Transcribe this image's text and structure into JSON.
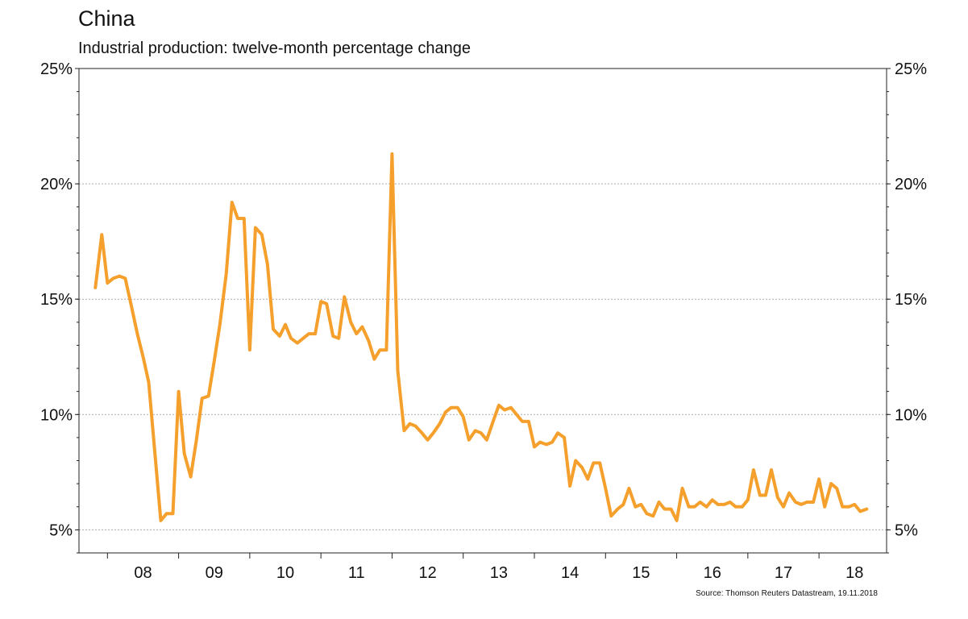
{
  "header": {
    "title": "China",
    "subtitle": "Industrial production: twelve-month percentage change"
  },
  "footer": {
    "source": "Source: Thomson Reuters Datastream, 19.11.2018"
  },
  "chart_data": {
    "type": "line",
    "title": "China",
    "subtitle": "Industrial production: twelve-month percentage change",
    "xlabel": "",
    "ylabel": "",
    "xlim": [
      2007.6,
      2018.95
    ],
    "ylim": [
      4,
      25
    ],
    "y_ticks": [
      5,
      10,
      15,
      20,
      25
    ],
    "y_tick_labels": [
      "5%",
      "10%",
      "15%",
      "20%",
      "25%"
    ],
    "x_ticks": [
      2008.5,
      2009.5,
      2010.5,
      2011.5,
      2012.5,
      2013.5,
      2014.5,
      2015.5,
      2016.5,
      2017.5,
      2018.5
    ],
    "x_tick_labels": [
      "08",
      "09",
      "10",
      "11",
      "12",
      "13",
      "14",
      "15",
      "16",
      "17",
      "18"
    ],
    "grid": true,
    "dual_y_axis": true,
    "legend": "none",
    "colors": {
      "line": "#F5A02C",
      "grid": "#aaaaaa",
      "axis": "#222222"
    },
    "series": [
      {
        "name": "",
        "points": [
          [
            2007.83,
            15.5
          ],
          [
            2007.92,
            17.8
          ],
          [
            2008.0,
            15.7
          ],
          [
            2008.08,
            15.9
          ],
          [
            2008.17,
            16.0
          ],
          [
            2008.25,
            15.9
          ],
          [
            2008.33,
            14.8
          ],
          [
            2008.42,
            13.5
          ],
          [
            2008.5,
            12.5
          ],
          [
            2008.58,
            11.4
          ],
          [
            2008.67,
            8.2
          ],
          [
            2008.75,
            5.4
          ],
          [
            2008.83,
            5.7
          ],
          [
            2008.92,
            5.7
          ],
          [
            2009.0,
            11.0
          ],
          [
            2009.08,
            8.3
          ],
          [
            2009.17,
            7.3
          ],
          [
            2009.25,
            8.9
          ],
          [
            2009.33,
            10.7
          ],
          [
            2009.42,
            10.8
          ],
          [
            2009.5,
            12.3
          ],
          [
            2009.58,
            13.9
          ],
          [
            2009.67,
            16.1
          ],
          [
            2009.75,
            19.2
          ],
          [
            2009.83,
            18.5
          ],
          [
            2009.92,
            18.5
          ],
          [
            2010.0,
            12.8
          ],
          [
            2010.08,
            18.1
          ],
          [
            2010.17,
            17.8
          ],
          [
            2010.25,
            16.5
          ],
          [
            2010.33,
            13.7
          ],
          [
            2010.42,
            13.4
          ],
          [
            2010.5,
            13.9
          ],
          [
            2010.58,
            13.3
          ],
          [
            2010.67,
            13.1
          ],
          [
            2010.75,
            13.3
          ],
          [
            2010.83,
            13.5
          ],
          [
            2010.92,
            13.5
          ],
          [
            2011.0,
            14.9
          ],
          [
            2011.08,
            14.8
          ],
          [
            2011.17,
            13.4
          ],
          [
            2011.25,
            13.3
          ],
          [
            2011.33,
            15.1
          ],
          [
            2011.42,
            14.0
          ],
          [
            2011.5,
            13.5
          ],
          [
            2011.58,
            13.8
          ],
          [
            2011.67,
            13.2
          ],
          [
            2011.75,
            12.4
          ],
          [
            2011.83,
            12.8
          ],
          [
            2011.92,
            12.8
          ],
          [
            2012.0,
            21.3
          ],
          [
            2012.08,
            11.9
          ],
          [
            2012.17,
            9.3
          ],
          [
            2012.25,
            9.6
          ],
          [
            2012.33,
            9.5
          ],
          [
            2012.42,
            9.2
          ],
          [
            2012.5,
            8.9
          ],
          [
            2012.58,
            9.2
          ],
          [
            2012.67,
            9.6
          ],
          [
            2012.75,
            10.1
          ],
          [
            2012.83,
            10.3
          ],
          [
            2012.92,
            10.3
          ],
          [
            2013.0,
            9.9
          ],
          [
            2013.08,
            8.9
          ],
          [
            2013.17,
            9.3
          ],
          [
            2013.25,
            9.2
          ],
          [
            2013.33,
            8.9
          ],
          [
            2013.42,
            9.7
          ],
          [
            2013.5,
            10.4
          ],
          [
            2013.58,
            10.2
          ],
          [
            2013.67,
            10.3
          ],
          [
            2013.75,
            10.0
          ],
          [
            2013.83,
            9.7
          ],
          [
            2013.92,
            9.7
          ],
          [
            2014.0,
            8.6
          ],
          [
            2014.08,
            8.8
          ],
          [
            2014.17,
            8.7
          ],
          [
            2014.25,
            8.8
          ],
          [
            2014.33,
            9.2
          ],
          [
            2014.42,
            9.0
          ],
          [
            2014.5,
            6.9
          ],
          [
            2014.58,
            8.0
          ],
          [
            2014.67,
            7.7
          ],
          [
            2014.75,
            7.2
          ],
          [
            2014.83,
            7.9
          ],
          [
            2014.92,
            7.9
          ],
          [
            2015.0,
            6.8
          ],
          [
            2015.08,
            5.6
          ],
          [
            2015.17,
            5.9
          ],
          [
            2015.25,
            6.1
          ],
          [
            2015.33,
            6.8
          ],
          [
            2015.42,
            6.0
          ],
          [
            2015.5,
            6.1
          ],
          [
            2015.58,
            5.7
          ],
          [
            2015.67,
            5.6
          ],
          [
            2015.75,
            6.2
          ],
          [
            2015.83,
            5.9
          ],
          [
            2015.92,
            5.9
          ],
          [
            2016.0,
            5.4
          ],
          [
            2016.08,
            6.8
          ],
          [
            2016.17,
            6.0
          ],
          [
            2016.25,
            6.0
          ],
          [
            2016.33,
            6.2
          ],
          [
            2016.42,
            6.0
          ],
          [
            2016.5,
            6.3
          ],
          [
            2016.58,
            6.1
          ],
          [
            2016.67,
            6.1
          ],
          [
            2016.75,
            6.2
          ],
          [
            2016.83,
            6.0
          ],
          [
            2016.92,
            6.0
          ],
          [
            2017.0,
            6.3
          ],
          [
            2017.08,
            7.6
          ],
          [
            2017.17,
            6.5
          ],
          [
            2017.25,
            6.5
          ],
          [
            2017.33,
            7.6
          ],
          [
            2017.42,
            6.4
          ],
          [
            2017.5,
            6.0
          ],
          [
            2017.58,
            6.6
          ],
          [
            2017.67,
            6.2
          ],
          [
            2017.75,
            6.1
          ],
          [
            2017.83,
            6.2
          ],
          [
            2017.92,
            6.2
          ],
          [
            2018.0,
            7.2
          ],
          [
            2018.08,
            6.0
          ],
          [
            2018.17,
            7.0
          ],
          [
            2018.25,
            6.8
          ],
          [
            2018.33,
            6.0
          ],
          [
            2018.42,
            6.0
          ],
          [
            2018.5,
            6.1
          ],
          [
            2018.58,
            5.8
          ],
          [
            2018.67,
            5.9
          ]
        ]
      }
    ]
  }
}
